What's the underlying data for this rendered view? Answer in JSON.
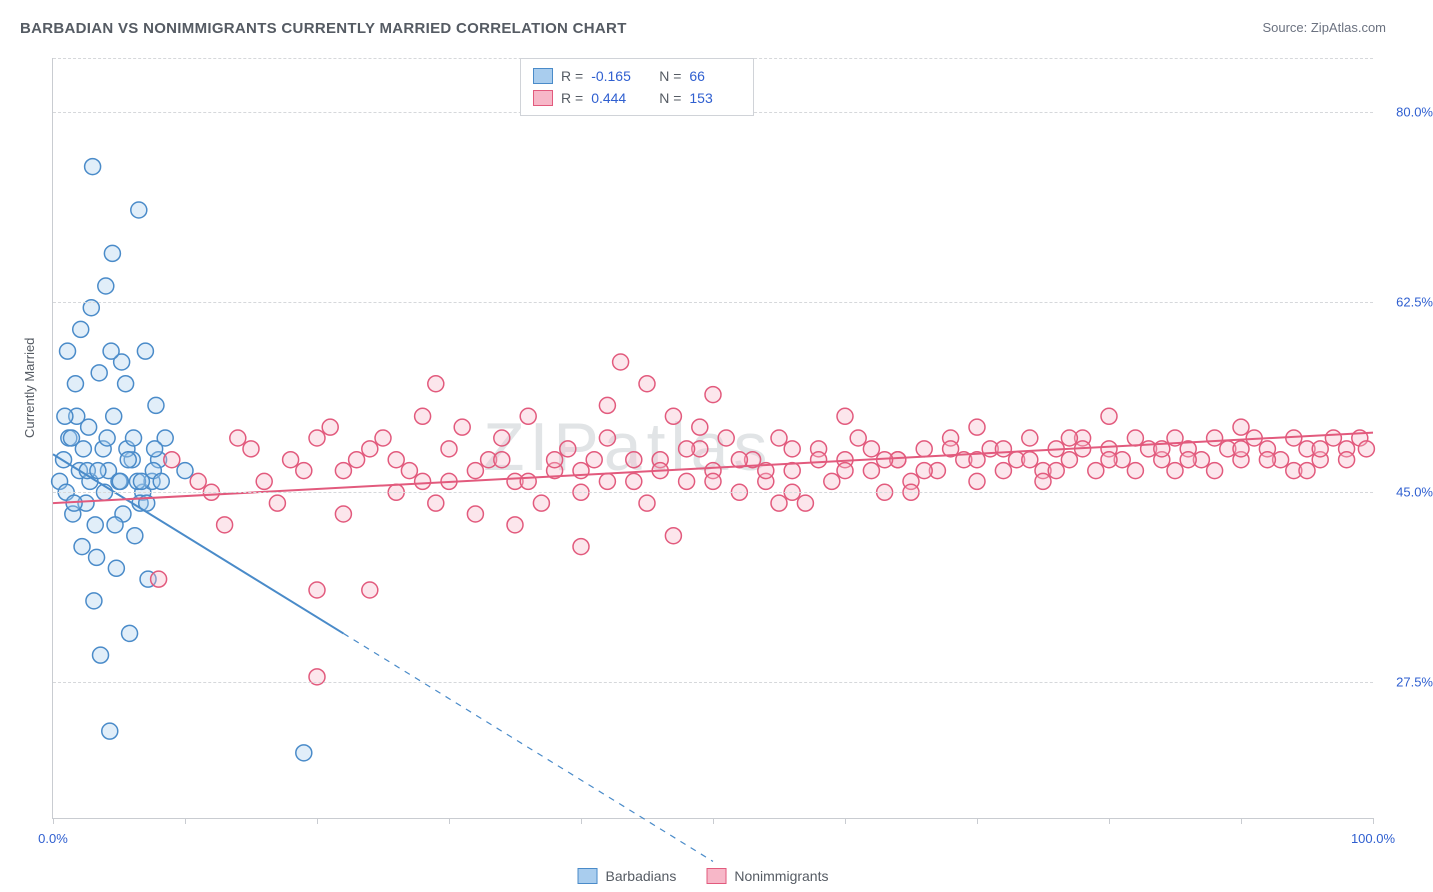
{
  "title": "BARBADIAN VS NONIMMIGRANTS CURRENTLY MARRIED CORRELATION CHART",
  "source": "Source: ZipAtlas.com",
  "y_axis_title": "Currently Married",
  "watermark": "ZIPatlas",
  "chart": {
    "type": "scatter-correlation",
    "background_color": "#ffffff",
    "grid_color": "#d6d8db",
    "axis_color": "#c9ccd1",
    "text_color": "#555b63",
    "value_color": "#2f5fd0",
    "xlim": [
      0,
      100
    ],
    "ylim": [
      15,
      85
    ],
    "x_ticks": [
      0,
      10,
      20,
      30,
      40,
      50,
      60,
      70,
      80,
      90,
      100
    ],
    "x_tick_labels": {
      "0": "0.0%",
      "100": "100.0%"
    },
    "y_ticks": [
      27.5,
      45.0,
      62.5,
      80.0
    ],
    "y_tick_labels": [
      "27.5%",
      "45.0%",
      "62.5%",
      "80.0%"
    ],
    "marker_radius": 8,
    "marker_stroke_width": 1.5,
    "marker_fill_opacity": 0.35,
    "line_width": 2
  },
  "series": [
    {
      "name": "Barbadians",
      "color": "#5b9bd5",
      "fill": "#a9cdee",
      "stroke": "#4a8bc9",
      "R": "-0.165",
      "N": "66",
      "trend": {
        "x1": 0,
        "y1": 48.5,
        "x2": 22,
        "y2": 32.0,
        "extrap_x2": 50,
        "extrap_y2": 11.0
      },
      "points": [
        [
          0.5,
          46
        ],
        [
          0.8,
          48
        ],
        [
          1.0,
          45
        ],
        [
          1.2,
          50
        ],
        [
          1.5,
          43
        ],
        [
          1.8,
          52
        ],
        [
          2.0,
          47
        ],
        [
          2.2,
          40
        ],
        [
          2.5,
          44
        ],
        [
          2.8,
          46
        ],
        [
          3.0,
          75
        ],
        [
          3.2,
          42
        ],
        [
          3.5,
          56
        ],
        [
          3.8,
          49
        ],
        [
          4.0,
          64
        ],
        [
          4.2,
          47
        ],
        [
          4.5,
          67
        ],
        [
          4.8,
          38
        ],
        [
          5.0,
          46
        ],
        [
          5.2,
          57
        ],
        [
          5.5,
          55
        ],
        [
          5.8,
          32
        ],
        [
          6.0,
          48
        ],
        [
          6.2,
          41
        ],
        [
          6.5,
          71
        ],
        [
          6.8,
          45
        ],
        [
          7.0,
          58
        ],
        [
          7.2,
          37
        ],
        [
          7.5,
          46
        ],
        [
          7.8,
          53
        ],
        [
          8.0,
          48
        ],
        [
          8.5,
          50
        ],
        [
          4.3,
          23
        ],
        [
          3.6,
          30
        ],
        [
          2.1,
          60
        ],
        [
          1.7,
          55
        ],
        [
          2.9,
          62
        ],
        [
          3.1,
          35
        ],
        [
          3.3,
          39
        ],
        [
          4.6,
          52
        ],
        [
          5.3,
          43
        ],
        [
          6.4,
          46
        ],
        [
          1.4,
          50
        ],
        [
          0.9,
          52
        ],
        [
          2.6,
          47
        ],
        [
          3.9,
          45
        ],
        [
          4.4,
          58
        ],
        [
          5.6,
          49
        ],
        [
          6.6,
          44
        ],
        [
          7.6,
          47
        ],
        [
          1.1,
          58
        ],
        [
          1.6,
          44
        ],
        [
          2.3,
          49
        ],
        [
          2.7,
          51
        ],
        [
          3.4,
          47
        ],
        [
          4.1,
          50
        ],
        [
          4.7,
          42
        ],
        [
          5.1,
          46
        ],
        [
          5.7,
          48
        ],
        [
          6.1,
          50
        ],
        [
          6.7,
          46
        ],
        [
          7.1,
          44
        ],
        [
          7.7,
          49
        ],
        [
          8.2,
          46
        ],
        [
          19,
          21
        ],
        [
          10,
          47
        ]
      ]
    },
    {
      "name": "Nonimmigrants",
      "color": "#ec6e8e",
      "fill": "#f7b7c8",
      "stroke": "#e25a7d",
      "R": "0.444",
      "N": "153",
      "trend": {
        "x1": 0,
        "y1": 44.0,
        "x2": 100,
        "y2": 50.5
      },
      "points": [
        [
          8,
          37
        ],
        [
          11,
          46
        ],
        [
          13,
          42
        ],
        [
          15,
          49
        ],
        [
          17,
          44
        ],
        [
          19,
          47
        ],
        [
          20,
          36
        ],
        [
          21,
          51
        ],
        [
          22,
          43
        ],
        [
          23,
          48
        ],
        [
          24,
          36
        ],
        [
          25,
          50
        ],
        [
          26,
          45
        ],
        [
          27,
          47
        ],
        [
          28,
          52
        ],
        [
          29,
          44
        ],
        [
          29,
          55
        ],
        [
          30,
          46
        ],
        [
          31,
          51
        ],
        [
          32,
          43
        ],
        [
          33,
          48
        ],
        [
          34,
          50
        ],
        [
          35,
          46
        ],
        [
          36,
          52
        ],
        [
          37,
          44
        ],
        [
          38,
          47
        ],
        [
          39,
          49
        ],
        [
          40,
          45
        ],
        [
          40,
          40
        ],
        [
          41,
          48
        ],
        [
          42,
          50
        ],
        [
          43,
          57
        ],
        [
          44,
          46
        ],
        [
          45,
          44
        ],
        [
          46,
          48
        ],
        [
          47,
          41
        ],
        [
          47,
          52
        ],
        [
          48,
          46
        ],
        [
          49,
          49
        ],
        [
          50,
          47
        ],
        [
          51,
          50
        ],
        [
          52,
          45
        ],
        [
          53,
          48
        ],
        [
          54,
          46
        ],
        [
          55,
          50
        ],
        [
          56,
          47
        ],
        [
          57,
          44
        ],
        [
          58,
          49
        ],
        [
          59,
          46
        ],
        [
          60,
          48
        ],
        [
          61,
          50
        ],
        [
          62,
          47
        ],
        [
          63,
          45
        ],
        [
          64,
          48
        ],
        [
          65,
          46
        ],
        [
          66,
          49
        ],
        [
          67,
          47
        ],
        [
          68,
          50
        ],
        [
          69,
          48
        ],
        [
          70,
          46
        ],
        [
          71,
          49
        ],
        [
          72,
          47
        ],
        [
          73,
          48
        ],
        [
          74,
          50
        ],
        [
          75,
          47
        ],
        [
          76,
          49
        ],
        [
          77,
          48
        ],
        [
          78,
          50
        ],
        [
          79,
          47
        ],
        [
          80,
          49
        ],
        [
          81,
          48
        ],
        [
          82,
          50
        ],
        [
          83,
          49
        ],
        [
          84,
          48
        ],
        [
          85,
          50
        ],
        [
          86,
          49
        ],
        [
          87,
          48
        ],
        [
          88,
          50
        ],
        [
          89,
          49
        ],
        [
          90,
          48
        ],
        [
          91,
          50
        ],
        [
          92,
          49
        ],
        [
          93,
          48
        ],
        [
          94,
          50
        ],
        [
          95,
          49
        ],
        [
          96,
          48
        ],
        [
          97,
          50
        ],
        [
          98,
          49
        ],
        [
          99,
          50
        ],
        [
          99.5,
          49
        ],
        [
          9,
          48
        ],
        [
          12,
          45
        ],
        [
          14,
          50
        ],
        [
          16,
          46
        ],
        [
          18,
          48
        ],
        [
          20,
          50
        ],
        [
          22,
          47
        ],
        [
          24,
          49
        ],
        [
          26,
          48
        ],
        [
          28,
          46
        ],
        [
          30,
          49
        ],
        [
          32,
          47
        ],
        [
          34,
          48
        ],
        [
          36,
          46
        ],
        [
          38,
          48
        ],
        [
          40,
          47
        ],
        [
          42,
          46
        ],
        [
          44,
          48
        ],
        [
          46,
          47
        ],
        [
          48,
          49
        ],
        [
          50,
          46
        ],
        [
          52,
          48
        ],
        [
          54,
          47
        ],
        [
          56,
          49
        ],
        [
          58,
          48
        ],
        [
          60,
          47
        ],
        [
          62,
          49
        ],
        [
          64,
          48
        ],
        [
          66,
          47
        ],
        [
          68,
          49
        ],
        [
          70,
          48
        ],
        [
          72,
          49
        ],
        [
          74,
          48
        ],
        [
          76,
          47
        ],
        [
          78,
          49
        ],
        [
          80,
          48
        ],
        [
          82,
          47
        ],
        [
          84,
          49
        ],
        [
          86,
          48
        ],
        [
          88,
          47
        ],
        [
          90,
          49
        ],
        [
          92,
          48
        ],
        [
          94,
          47
        ],
        [
          96,
          49
        ],
        [
          98,
          48
        ],
        [
          45,
          55
        ],
        [
          50,
          54
        ],
        [
          55,
          44
        ],
        [
          60,
          52
        ],
        [
          65,
          45
        ],
        [
          70,
          51
        ],
        [
          75,
          46
        ],
        [
          80,
          52
        ],
        [
          85,
          47
        ],
        [
          90,
          51
        ],
        [
          95,
          47
        ],
        [
          20,
          28
        ],
        [
          35,
          42
        ],
        [
          42,
          53
        ],
        [
          49,
          51
        ],
        [
          56,
          45
        ],
        [
          63,
          48
        ],
        [
          77,
          50
        ]
      ]
    }
  ],
  "stats_box_labels": {
    "R": "R =",
    "N": "N ="
  },
  "legend": {
    "items": [
      "Barbadians",
      "Nonimmigrants"
    ]
  }
}
